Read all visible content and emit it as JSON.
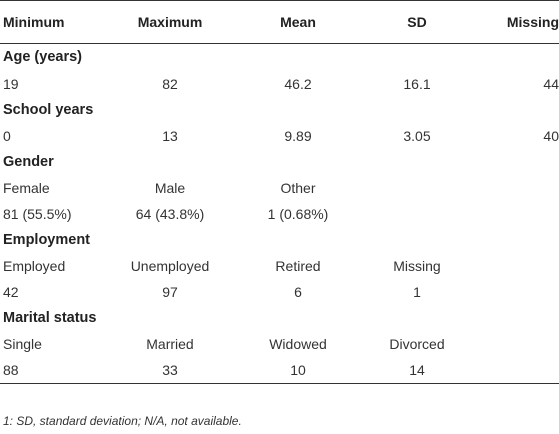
{
  "table": {
    "headers": [
      "Minimum",
      "Maximum",
      "Mean",
      "SD",
      "Missing"
    ],
    "sections": [
      {
        "title": "Age (years)",
        "rows": [
          [
            "19",
            "82",
            "46.2",
            "16.1",
            "44"
          ]
        ]
      },
      {
        "title": "School years",
        "rows": [
          [
            "0",
            "13",
            "9.89",
            "3.05",
            "40"
          ]
        ]
      },
      {
        "title": "Gender",
        "rows": [
          [
            "Female",
            "Male",
            "Other",
            "",
            ""
          ],
          [
            "81 (55.5%)",
            "64 (43.8%)",
            "1 (0.68%)",
            "",
            ""
          ]
        ]
      },
      {
        "title": "Employment",
        "rows": [
          [
            "Employed",
            "Unemployed",
            "Retired",
            "Missing",
            ""
          ],
          [
            "42",
            "97",
            "6",
            "1",
            ""
          ]
        ]
      },
      {
        "title": "Marital status",
        "rows": [
          [
            "Single",
            "Married",
            "Widowed",
            "Divorced",
            ""
          ],
          [
            "88",
            "33",
            "10",
            "14",
            ""
          ]
        ]
      }
    ]
  },
  "footnote": "1: SD, standard deviation; N/A, not available."
}
